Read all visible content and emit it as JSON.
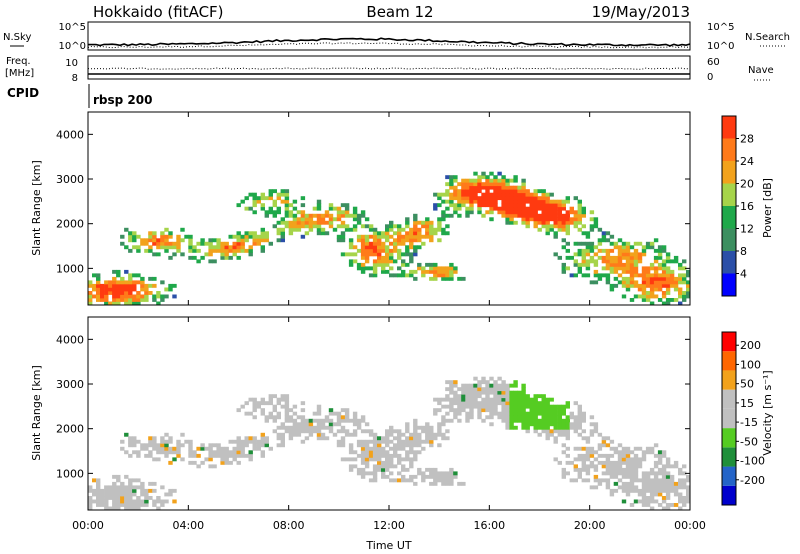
{
  "header": {
    "station": "Hokkaido (fitACF)",
    "beam": "Beam 12",
    "date": "19/May/2013"
  },
  "summary_panel": {
    "nsky_label": "N.Sky",
    "nsearch_label": "N.Search",
    "left_ticks": [
      "10^5",
      "10^0"
    ],
    "right_ticks": [
      "10^5",
      "10^0"
    ],
    "freq_label_line1": "Freq.",
    "freq_label_line2": "[MHz]",
    "freq_ticks": [
      "10",
      "8"
    ],
    "nave_label": "Nave",
    "nave_ticks": [
      "60",
      "0"
    ],
    "cpid_label": "CPID",
    "cpid_value": "rbsp 200"
  },
  "colors": {
    "power_scale": [
      "#0000ff",
      "#2b4fa8",
      "#3c8f60",
      "#1fa84a",
      "#a6d44a",
      "#f2a21c",
      "#ff7a1a",
      "#ff3a10",
      "#ff0000"
    ],
    "velocity_scale": [
      "#0000cc",
      "#2464c8",
      "#1f8f3a",
      "#55cc22",
      "#c0c0c0",
      "#c0c0c0",
      "#f2a21c",
      "#ff6600",
      "#ff0000"
    ],
    "grey": "#c0c0c0"
  },
  "chart_data": [
    {
      "type": "heatmap",
      "ylabel": "Slant Range [km]",
      "yticks": [
        "1000",
        "2000",
        "3000",
        "4000"
      ],
      "ylim": [
        180,
        4500
      ],
      "xticks": [
        "00:00",
        "04:00",
        "08:00",
        "12:00",
        "16:00",
        "20:00",
        "00:00"
      ],
      "colorbar_label": "Power [dB]",
      "colorbar_ticks": [
        "4",
        "8",
        "12",
        "16",
        "20",
        "24",
        "28"
      ],
      "colorbar_range": [
        0,
        32
      ]
    },
    {
      "type": "heatmap",
      "ylabel": "Slant Range [km]",
      "yticks": [
        "1000",
        "2000",
        "3000",
        "4000"
      ],
      "ylim": [
        180,
        4500
      ],
      "xticks": [
        "00:00",
        "04:00",
        "08:00",
        "12:00",
        "16:00",
        "20:00",
        "00:00"
      ],
      "xlabel": "Time UT",
      "colorbar_label": "Velocity [m s⁻¹]",
      "colorbar_ticks": [
        "200",
        "100",
        "50",
        "15",
        "-15",
        "-50",
        "-100",
        "-200"
      ]
    }
  ]
}
